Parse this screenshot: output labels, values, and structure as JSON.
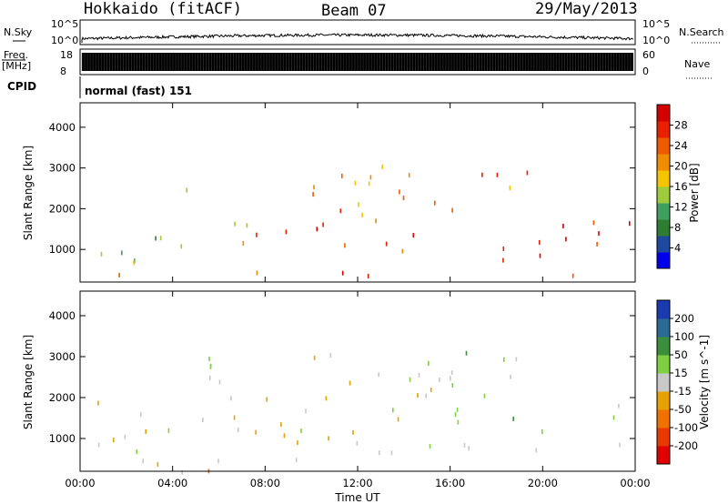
{
  "header": {
    "title": "Hokkaido (fitACF)",
    "beam": "Beam 07",
    "date": "29/May/2013"
  },
  "top_panels": {
    "nsky_label": "N.Sky",
    "nsearch_label": "N.Search",
    "nsky_ticks": [
      "10^5",
      "10^0"
    ],
    "nsky_right_ticks": [
      "10^5",
      "10^0"
    ],
    "freq_label": "Freq.",
    "freq_unit": "[MHz]",
    "freq_ticks": [
      "18",
      "8"
    ],
    "nave_label": "Nave",
    "nave_ticks": [
      "60",
      "0"
    ],
    "cpid_label": "CPID",
    "cpid_text": "normal (fast) 151"
  },
  "colors": {
    "power_scale": [
      "#0000ee",
      "#1d4aa0",
      "#2e7d32",
      "#3f9f5f",
      "#9ccc3c",
      "#f5c400",
      "#f08c00",
      "#ef5a00",
      "#e81f00",
      "#d40000"
    ],
    "velocity_scale": [
      "#1a3bb0",
      "#2b6a94",
      "#3b8e3b",
      "#7fd040",
      "#c8c8c8",
      "#e6a000",
      "#f07000",
      "#e83a00",
      "#e00000"
    ]
  },
  "chart_data": [
    {
      "type": "heatmap",
      "title": "Power",
      "xlabel": "Time UT",
      "ylabel": "Slant Range [km]",
      "x_ticks": [
        "00:00",
        "04:00",
        "08:00",
        "12:00",
        "16:00",
        "20:00",
        "00:00"
      ],
      "y_ticks": [
        "1000",
        "2000",
        "3000",
        "4000"
      ],
      "ylim": [
        200,
        4600
      ],
      "colorbar": {
        "label": "Power [dB]",
        "ticks": [
          "4",
          "8",
          "12",
          "16",
          "20",
          "24",
          "28"
        ],
        "range": [
          0,
          32
        ]
      },
      "scatter_bands": [
        {
          "t_start": 0.0,
          "t_end": 8.0,
          "r_low": 700,
          "r_high": 1700,
          "value": 14
        },
        {
          "t_start": 4.0,
          "t_end": 12.0,
          "r_low": 2400,
          "r_high": 3000,
          "value": 20
        },
        {
          "t_start": 6.0,
          "t_end": 16.0,
          "r_low": 1000,
          "r_high": 2200,
          "value": 24
        },
        {
          "t_start": 12.0,
          "t_end": 20.0,
          "r_low": 2000,
          "r_high": 3300,
          "value": 22
        },
        {
          "t_start": 17.0,
          "t_end": 24.0,
          "r_low": 400,
          "r_high": 1800,
          "value": 28
        },
        {
          "t_start": 1.0,
          "t_end": 13.0,
          "r_low": 200,
          "r_high": 500,
          "value": 26
        }
      ]
    },
    {
      "type": "heatmap",
      "title": "Velocity",
      "xlabel": "Time UT",
      "ylabel": "Slant Range [km]",
      "x_ticks": [
        "00:00",
        "04:00",
        "08:00",
        "12:00",
        "16:00",
        "20:00",
        "00:00"
      ],
      "y_ticks": [
        "1000",
        "2000",
        "3000",
        "4000"
      ],
      "ylim": [
        200,
        4600
      ],
      "colorbar": {
        "label": "Velocity [m s^-1]",
        "ticks": [
          "200",
          "100",
          "50",
          "15",
          "-15",
          "-50",
          "-100",
          "-200"
        ],
        "range": [
          -250,
          250
        ]
      },
      "scatter_bands": [
        {
          "t_start": 0.0,
          "t_end": 24.0,
          "r_low": 700,
          "r_high": 2000,
          "value": 0
        },
        {
          "t_start": 5.0,
          "t_end": 20.0,
          "r_low": 2000,
          "r_high": 3200,
          "value": -10
        },
        {
          "t_start": 15.0,
          "t_end": 19.0,
          "r_low": 1500,
          "r_high": 3200,
          "value": 40
        },
        {
          "t_start": 2.0,
          "t_end": 12.0,
          "r_low": 200,
          "r_high": 700,
          "value": -40
        }
      ]
    }
  ],
  "axis": {
    "time_label": "Time UT"
  }
}
